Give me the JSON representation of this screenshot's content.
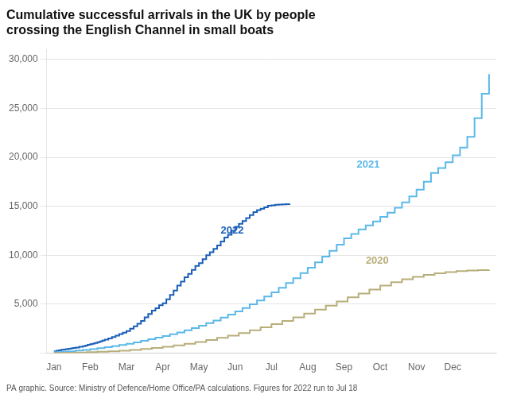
{
  "chart_data": {
    "type": "line",
    "line_style": "step",
    "title": "Cumulative successful arrivals in the UK by people\ncrossing the English Channel in small boats",
    "source": "PA graphic. Source: Ministry of Defence/Home Office/PA calculations. Figures for 2022 run to Jul 18",
    "xlim": [
      -0.2,
      12.2
    ],
    "xticks": [
      {
        "value": 0,
        "label": "Jan"
      },
      {
        "value": 1,
        "label": "Feb"
      },
      {
        "value": 2,
        "label": "Mar"
      },
      {
        "value": 3,
        "label": "Apr"
      },
      {
        "value": 4,
        "label": "May"
      },
      {
        "value": 5,
        "label": "Jun"
      },
      {
        "value": 6,
        "label": "Jul"
      },
      {
        "value": 7,
        "label": "Aug"
      },
      {
        "value": 8,
        "label": "Sep"
      },
      {
        "value": 9,
        "label": "Oct"
      },
      {
        "value": 10,
        "label": "Nov"
      },
      {
        "value": 11,
        "label": "Dec"
      }
    ],
    "ylim": [
      0,
      31000
    ],
    "yticks": [
      {
        "value": 0,
        "label": ""
      },
      {
        "value": 5000,
        "label": "5,000"
      },
      {
        "value": 10000,
        "label": "10,000"
      },
      {
        "value": 15000,
        "label": "15,000"
      },
      {
        "value": 20000,
        "label": "20,000"
      },
      {
        "value": 25000,
        "label": "25,000"
      },
      {
        "value": 30000,
        "label": "30,000"
      }
    ],
    "grid": "y",
    "series": [
      {
        "name": "2020",
        "color": "#b8ae7a",
        "x": [
          0.0,
          0.3,
          0.6,
          0.9,
          1.2,
          1.5,
          1.8,
          2.1,
          2.4,
          2.7,
          3.0,
          3.3,
          3.6,
          3.9,
          4.2,
          4.5,
          4.8,
          5.1,
          5.4,
          5.7,
          6.0,
          6.3,
          6.6,
          6.9,
          7.2,
          7.5,
          7.8,
          8.1,
          8.4,
          8.7,
          9.0,
          9.3,
          9.6,
          9.9,
          10.2,
          10.5,
          10.8,
          11.1,
          11.4,
          11.7,
          12.0
        ],
        "values": [
          30,
          50,
          70,
          100,
          140,
          190,
          260,
          340,
          430,
          540,
          660,
          800,
          960,
          1140,
          1340,
          1560,
          1800,
          2060,
          2340,
          2640,
          2960,
          3300,
          3660,
          4040,
          4440,
          4850,
          5280,
          5700,
          6100,
          6500,
          6900,
          7250,
          7550,
          7800,
          8000,
          8150,
          8280,
          8380,
          8440,
          8480,
          8520
        ]
      },
      {
        "name": "2021",
        "color": "#5bb8e8",
        "x": [
          0.0,
          0.2,
          0.4,
          0.6,
          0.8,
          1.0,
          1.2,
          1.4,
          1.6,
          1.8,
          2.0,
          2.2,
          2.4,
          2.6,
          2.8,
          3.0,
          3.2,
          3.4,
          3.6,
          3.8,
          4.0,
          4.2,
          4.4,
          4.6,
          4.8,
          5.0,
          5.2,
          5.4,
          5.6,
          5.8,
          6.0,
          6.2,
          6.4,
          6.6,
          6.8,
          7.0,
          7.2,
          7.4,
          7.6,
          7.8,
          8.0,
          8.2,
          8.4,
          8.6,
          8.8,
          9.0,
          9.2,
          9.4,
          9.6,
          9.8,
          10.0,
          10.2,
          10.4,
          10.6,
          10.8,
          11.0,
          11.2,
          11.4,
          11.6,
          11.8,
          12.0
        ],
        "values": [
          100,
          150,
          200,
          270,
          340,
          420,
          510,
          610,
          720,
          840,
          970,
          1110,
          1260,
          1420,
          1580,
          1750,
          1930,
          2120,
          2330,
          2560,
          2800,
          3060,
          3340,
          3630,
          3940,
          4270,
          4620,
          4990,
          5380,
          5790,
          6220,
          6680,
          7160,
          7660,
          8180,
          8720,
          9280,
          9860,
          10460,
          11080,
          11720,
          12180,
          12640,
          13050,
          13460,
          13920,
          14350,
          14850,
          15400,
          16000,
          16700,
          17500,
          18400,
          18900,
          19500,
          20200,
          21000,
          22100,
          24000,
          26500,
          28500
        ]
      },
      {
        "name": "2022",
        "color": "#1a5eb8",
        "x": [
          0.0,
          0.07,
          0.13,
          0.2,
          0.27,
          0.33,
          0.4,
          0.47,
          0.53,
          0.6,
          0.7,
          0.8,
          0.87,
          0.93,
          1.0,
          1.07,
          1.13,
          1.2,
          1.27,
          1.33,
          1.4,
          1.5,
          1.6,
          1.7,
          1.8,
          1.9,
          2.0,
          2.1,
          2.2,
          2.3,
          2.4,
          2.5,
          2.6,
          2.7,
          2.8,
          2.9,
          3.0,
          3.1,
          3.2,
          3.3,
          3.4,
          3.5,
          3.6,
          3.7,
          3.8,
          3.9,
          4.0,
          4.1,
          4.2,
          4.3,
          4.4,
          4.5,
          4.6,
          4.7,
          4.8,
          4.9,
          5.0,
          5.1,
          5.2,
          5.3,
          5.4,
          5.5,
          5.6,
          5.7,
          5.8,
          5.9,
          6.0,
          6.1,
          6.2,
          6.3,
          6.4,
          6.5
        ],
        "values": [
          200,
          250,
          300,
          350,
          380,
          420,
          450,
          500,
          540,
          580,
          650,
          720,
          780,
          850,
          920,
          980,
          1050,
          1120,
          1200,
          1280,
          1380,
          1500,
          1650,
          1800,
          1950,
          2100,
          2250,
          2500,
          2750,
          3000,
          3300,
          3650,
          4000,
          4350,
          4600,
          4900,
          5100,
          5500,
          5950,
          6400,
          6900,
          7300,
          7750,
          8100,
          8500,
          8900,
          9200,
          9600,
          10000,
          10300,
          10650,
          11000,
          11400,
          11800,
          12100,
          12500,
          12900,
          13200,
          13500,
          13800,
          14100,
          14400,
          14600,
          14750,
          14900,
          15050,
          15100,
          15150,
          15180,
          15200,
          15220,
          15250
        ]
      }
    ],
    "annotations": [
      {
        "text": "2020",
        "x": 8.6,
        "y": 9400,
        "color": "#b8ae7a"
      },
      {
        "text": "2021",
        "x": 8.35,
        "y": 19200,
        "color": "#5bb8e8"
      },
      {
        "text": "2022",
        "x": 4.6,
        "y": 12500,
        "color": "#1a5eb8"
      }
    ]
  }
}
